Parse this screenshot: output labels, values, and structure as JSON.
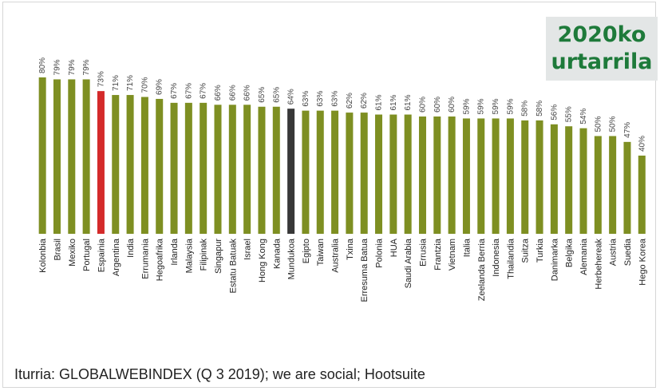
{
  "title": [
    "2020ko",
    "urtarrila"
  ],
  "source": "Iturria: GLOBALWEBINDEX (Q 3 2019); we are social; Hootsuite",
  "colors": {
    "default": "#7e8f22",
    "highlight": "#d42a2a",
    "reference": "#383838",
    "title_text": "#1e7a3a",
    "title_bg": "#e3e6e6"
  },
  "chart_data": {
    "type": "bar",
    "title": "2020ko urtarrila",
    "xlabel": "",
    "ylabel": "",
    "ylim": [
      0,
      100
    ],
    "grid": false,
    "legend": "none",
    "value_suffix": "%",
    "categories": [
      "Kolonbia",
      "Brasil",
      "Mexiko",
      "Portugal",
      "Espainia",
      "Argentina",
      "India",
      "Errumania",
      "Hegoafrika",
      "Irlanda",
      "Malaysia",
      "Filipinak",
      "Singapur",
      "Estatu Batuak",
      "Israel",
      "Hong Kong",
      "Kanada",
      "Mundukoa",
      "Egipto",
      "Taiwan",
      "Australia",
      "Txina",
      "Erresuma Batua",
      "Polonia",
      "HUA",
      "Saudi Arabia",
      "Errusia",
      "Frantzia",
      "Vietnam",
      "Italia",
      "Zeelanda Berria",
      "Indonesia",
      "Thailandia",
      "Suitza",
      "Turkia",
      "Danimarka",
      "Belgika",
      "Alemania",
      "Herbehereak",
      "Austria",
      "Suedia",
      "Hego Korea"
    ],
    "values": [
      80,
      79,
      79,
      79,
      73,
      71,
      71,
      70,
      69,
      67,
      67,
      67,
      66,
      66,
      66,
      65,
      65,
      64,
      63,
      63,
      63,
      62,
      62,
      61,
      61,
      61,
      60,
      60,
      60,
      59,
      59,
      59,
      59,
      58,
      58,
      56,
      55,
      54,
      50,
      50,
      47,
      40
    ],
    "highlight": {
      "Espainia": "highlight",
      "Mundukoa": "reference"
    }
  }
}
